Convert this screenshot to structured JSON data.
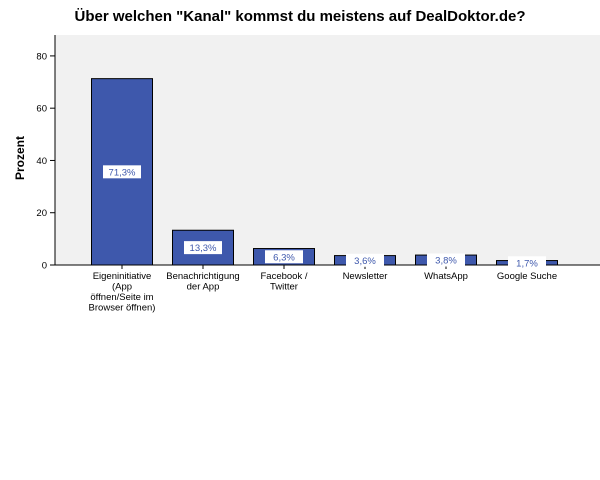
{
  "colors": {
    "plot_background": "#f1f1f1",
    "bar_fill": "#3e58ac",
    "bar_stroke": "#000000",
    "axis": "#000000",
    "data_label_text": "#3e58ac",
    "data_label_background": "#ffffff"
  },
  "chart_data": {
    "type": "bar",
    "title": "Über welchen \"Kanal\" kommst du meistens auf DealDoktor.de?",
    "xlabel": "",
    "ylabel": "Prozent",
    "ylim": [
      0,
      88
    ],
    "yticks": [
      0,
      20,
      40,
      60,
      80
    ],
    "grid": false,
    "categories": [
      [
        "Eigeninitiative",
        "(App",
        "öffnen/Seite im",
        "Browser öffnen)"
      ],
      [
        "Benachrichtigung",
        "der App"
      ],
      [
        "Facebook /",
        "Twitter"
      ],
      [
        "Newsletter"
      ],
      [
        "WhatsApp"
      ],
      [
        "Google Suche"
      ]
    ],
    "values": [
      71.3,
      13.3,
      6.3,
      3.6,
      3.8,
      1.7
    ],
    "data_labels": [
      "71,3%",
      "13,3%",
      "6,3%",
      "3,6%",
      "3,8%",
      "1,7%"
    ]
  }
}
